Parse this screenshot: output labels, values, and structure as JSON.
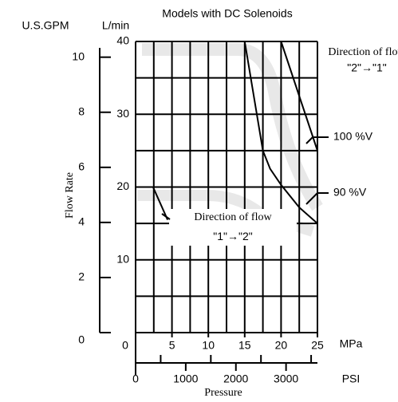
{
  "chart_data": {
    "type": "line",
    "title": "Models with DC Solenoids",
    "y_label": "Flow Rate",
    "x_label": "Pressure",
    "y_unit": "L/min",
    "y2_unit": "U.S.GPM",
    "x_unit": "MPa",
    "x2_unit": "PSI",
    "xlim": [
      0,
      25
    ],
    "xticks": [
      0,
      5,
      10,
      15,
      20,
      25
    ],
    "ylim": [
      0,
      40
    ],
    "yticks": [
      10,
      20,
      30,
      40
    ],
    "y2lim": [
      0,
      10.57
    ],
    "y2ticks": [
      0,
      2,
      4,
      6,
      8,
      10
    ],
    "x2lim": [
      0,
      3626
    ],
    "x2ticks": [
      0,
      1000,
      2000,
      3000
    ],
    "x2_minor_ticks": [
      500,
      1500,
      2500,
      3500
    ],
    "grid_x": [
      0,
      2.5,
      5,
      7.5,
      10,
      12.5,
      15,
      17.5,
      20,
      22.5,
      25
    ],
    "grid_y": [
      0,
      5,
      10,
      15,
      20,
      25,
      30,
      35,
      40
    ],
    "series": [
      {
        "name": "100 %V",
        "color": "#000000",
        "x": [
          20,
          25
        ],
        "values": [
          40,
          25
        ]
      },
      {
        "name": "90 %V",
        "color": "#000000",
        "x": [
          15,
          16.5,
          17.5,
          18.5,
          20,
          22.5,
          25
        ],
        "values": [
          40,
          31,
          25,
          22.5,
          20.3,
          17.2,
          15
        ]
      },
      {
        "name": "Direction of flow \"1\"→\"2\"",
        "color": "#000000",
        "x": [
          2.4,
          4.4
        ],
        "values": [
          20,
          15.5
        ]
      }
    ],
    "annotations": [
      {
        "text": "Direction of flow"
      },
      {
        "text": "\"2\"→\"1\""
      }
    ]
  }
}
